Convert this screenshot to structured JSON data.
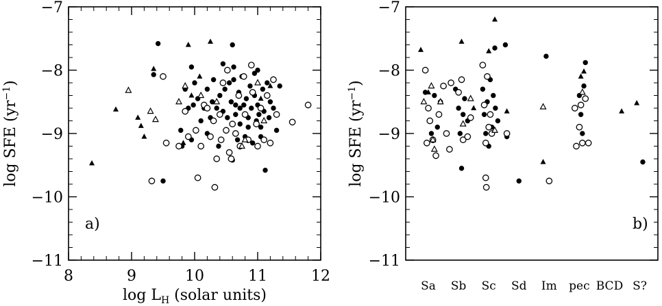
{
  "chart_data": [
    {
      "type": "scatter",
      "panel_label": "a)",
      "xlabel_main": "log L",
      "xlabel_sub": "H",
      "xlabel_rest": " (solar units)",
      "ylabel": "log SFE (yr",
      "ylabel_sup": "−1",
      "ylabel_close": ")",
      "xlim": [
        8,
        12
      ],
      "ylim": [
        -11,
        -7
      ],
      "xticks": [
        8,
        9,
        10,
        11,
        12
      ],
      "yticks": [
        -7,
        -8,
        -9,
        -10,
        -11
      ],
      "xtick_labels": [
        "8",
        "9",
        "10",
        "11",
        "12"
      ],
      "ytick_labels": [
        "−7",
        "−8",
        "−9",
        "−10",
        "−11"
      ],
      "series": [
        {
          "marker": "filled-circle",
          "points": [
            [
              9.42,
              -7.58
            ],
            [
              9.35,
              -8.07
            ],
            [
              9.5,
              -9.75
            ],
            [
              9.98,
              -8.55
            ],
            [
              9.85,
              -8.3
            ],
            [
              9.78,
              -8.95
            ],
            [
              9.95,
              -9.1
            ],
            [
              9.8,
              -9.2
            ],
            [
              10.05,
              -8.45
            ],
            [
              10.15,
              -8.6
            ],
            [
              10.2,
              -8.3
            ],
            [
              10.25,
              -8.75
            ],
            [
              10.3,
              -8.15
            ],
            [
              10.35,
              -8.6
            ],
            [
              10.4,
              -8.4
            ],
            [
              10.45,
              -7.9
            ],
            [
              10.45,
              -8.65
            ],
            [
              10.5,
              -8.95
            ],
            [
              10.55,
              -8.2
            ],
            [
              10.58,
              -8.5
            ],
            [
              10.6,
              -9.42
            ],
            [
              10.62,
              -7.95
            ],
            [
              10.65,
              -8.7
            ],
            [
              10.7,
              -8.35
            ],
            [
              10.72,
              -8.85
            ],
            [
              10.75,
              -8.1
            ],
            [
              10.78,
              -8.55
            ],
            [
              10.8,
              -9.05
            ],
            [
              10.82,
              -8.45
            ],
            [
              10.85,
              -8.75
            ],
            [
              10.88,
              -8.25
            ],
            [
              10.9,
              -8.6
            ],
            [
              10.92,
              -9.15
            ],
            [
              10.95,
              -8.4
            ],
            [
              10.98,
              -8.8
            ],
            [
              11.0,
              -8.55
            ],
            [
              11.02,
              -8.7
            ],
            [
              11.05,
              -8.9
            ],
            [
              11.08,
              -8.3
            ],
            [
              11.1,
              -8.65
            ],
            [
              11.12,
              -9.58
            ],
            [
              11.15,
              -8.2
            ],
            [
              11.18,
              -8.75
            ],
            [
              11.2,
              -8.5
            ],
            [
              11.25,
              -8.6
            ],
            [
              11.3,
              -8.95
            ],
            [
              11.35,
              -8.25
            ],
            [
              10.0,
              -8.2
            ],
            [
              10.1,
              -8.8
            ],
            [
              10.2,
              -9.0
            ],
            [
              10.28,
              -8.5
            ],
            [
              10.38,
              -9.2
            ],
            [
              10.48,
              -8.3
            ],
            [
              10.52,
              -8.75
            ],
            [
              10.62,
              -8.15
            ],
            [
              10.68,
              -9.1
            ],
            [
              10.72,
              -8.6
            ],
            [
              10.85,
              -8.9
            ],
            [
              10.95,
              -8.05
            ],
            [
              11.05,
              -9.05
            ],
            [
              9.9,
              -8.6
            ],
            [
              9.95,
              -7.95
            ],
            [
              10.6,
              -7.6
            ],
            [
              10.65,
              -8.55
            ],
            [
              11.0,
              -8.0
            ]
          ]
        },
        {
          "marker": "open-circle",
          "points": [
            [
              9.5,
              -8.1
            ],
            [
              9.55,
              -9.15
            ],
            [
              9.32,
              -9.75
            ],
            [
              9.75,
              -9.2
            ],
            [
              9.85,
              -8.65
            ],
            [
              9.9,
              -9.05
            ],
            [
              10.02,
              -8.95
            ],
            [
              10.05,
              -9.7
            ],
            [
              10.1,
              -9.2
            ],
            [
              10.15,
              -8.55
            ],
            [
              10.25,
              -9.05
            ],
            [
              10.3,
              -8.8
            ],
            [
              10.32,
              -9.85
            ],
            [
              10.35,
              -9.4
            ],
            [
              10.4,
              -8.7
            ],
            [
              10.42,
              -9.1
            ],
            [
              10.5,
              -8.95
            ],
            [
              10.52,
              -8.0
            ],
            [
              10.55,
              -9.3
            ],
            [
              10.6,
              -8.85
            ],
            [
              10.65,
              -9.0
            ],
            [
              10.7,
              -8.4
            ],
            [
              10.72,
              -9.2
            ],
            [
              10.78,
              -8.1
            ],
            [
              10.8,
              -8.7
            ],
            [
              10.85,
              -9.1
            ],
            [
              10.9,
              -7.92
            ],
            [
              10.92,
              -8.35
            ],
            [
              10.98,
              -8.85
            ],
            [
              11.0,
              -9.2
            ],
            [
              11.05,
              -8.6
            ],
            [
              11.1,
              -9.1
            ],
            [
              11.15,
              -8.4
            ],
            [
              11.2,
              -9.15
            ],
            [
              11.25,
              -8.15
            ],
            [
              11.3,
              -8.7
            ],
            [
              11.55,
              -8.82
            ],
            [
              11.8,
              -8.55
            ],
            [
              10.2,
              -8.6
            ],
            [
              10.45,
              -8.2
            ],
            [
              10.58,
              -9.4
            ]
          ]
        },
        {
          "marker": "filled-triangle",
          "points": [
            [
              8.37,
              -9.47
            ],
            [
              8.75,
              -8.62
            ],
            [
              9.1,
              -8.75
            ],
            [
              9.15,
              -8.88
            ],
            [
              9.2,
              -9.05
            ],
            [
              9.35,
              -7.98
            ],
            [
              9.9,
              -7.6
            ],
            [
              10.25,
              -7.55
            ],
            [
              9.95,
              -8.4
            ],
            [
              10.08,
              -8.1
            ],
            [
              11.05,
              -8.45
            ],
            [
              11.2,
              -8.25
            ],
            [
              9.82,
              -9.15
            ]
          ]
        },
        {
          "marker": "open-triangle",
          "points": [
            [
              8.95,
              -8.32
            ],
            [
              9.3,
              -8.65
            ],
            [
              9.38,
              -8.78
            ],
            [
              9.75,
              -8.5
            ],
            [
              9.85,
              -8.25
            ],
            [
              10.1,
              -8.4
            ],
            [
              10.35,
              -8.5
            ],
            [
              10.8,
              -9.1
            ],
            [
              10.75,
              -9.2
            ],
            [
              11.1,
              -8.8
            ],
            [
              11.0,
              -8.2
            ]
          ]
        }
      ]
    },
    {
      "type": "scatter",
      "panel_label": "b)",
      "ylabel": "log SFE (yr",
      "ylabel_sup": "−1",
      "ylabel_close": ")",
      "ylim": [
        -11,
        -7
      ],
      "yticks": [
        -7,
        -8,
        -9,
        -10,
        -11
      ],
      "ytick_labels": [
        "−7",
        "−8",
        "−9",
        "−10",
        "−11"
      ],
      "categories": [
        "Sa",
        "Sb",
        "Sc",
        "Sd",
        "Im",
        "pec",
        "BCD",
        "S?"
      ],
      "category_positions": [
        1,
        2,
        3,
        4,
        5,
        6,
        7,
        8
      ],
      "xlim": [
        0.25,
        8.6
      ],
      "series": [
        {
          "marker": "filled-circle",
          "points": [
            [
              0.9,
              -8.35
            ],
            [
              1.0,
              -8.6
            ],
            [
              1.1,
              -9.0
            ],
            [
              1.2,
              -8.4
            ],
            [
              1.3,
              -8.9
            ],
            [
              1.4,
              -8.5
            ],
            [
              1.9,
              -8.3
            ],
            [
              2.0,
              -8.6
            ],
            [
              2.05,
              -9.0
            ],
            [
              2.1,
              -9.55
            ],
            [
              2.15,
              -8.7
            ],
            [
              2.2,
              -8.45
            ],
            [
              2.3,
              -8.8
            ],
            [
              2.8,
              -8.3
            ],
            [
              2.85,
              -8.7
            ],
            [
              2.9,
              -9.0
            ],
            [
              2.95,
              -8.5
            ],
            [
              3.0,
              -9.2
            ],
            [
              3.05,
              -8.15
            ],
            [
              3.1,
              -8.9
            ],
            [
              3.15,
              -8.4
            ],
            [
              3.2,
              -7.65
            ],
            [
              3.22,
              -8.6
            ],
            [
              3.3,
              -8.8
            ],
            [
              3.55,
              -7.6
            ],
            [
              3.6,
              -9.05
            ],
            [
              4.0,
              -9.75
            ],
            [
              4.9,
              -7.78
            ],
            [
              6.0,
              -8.4
            ],
            [
              6.05,
              -8.7
            ],
            [
              6.1,
              -9.0
            ],
            [
              6.15,
              -8.25
            ],
            [
              6.2,
              -7.88
            ],
            [
              8.1,
              -9.45
            ]
          ]
        },
        {
          "marker": "open-circle",
          "points": [
            [
              0.9,
              -8.0
            ],
            [
              0.95,
              -9.15
            ],
            [
              1.0,
              -8.6
            ],
            [
              1.05,
              -8.8
            ],
            [
              1.15,
              -9.1
            ],
            [
              1.25,
              -9.35
            ],
            [
              1.35,
              -8.7
            ],
            [
              1.5,
              -8.25
            ],
            [
              1.6,
              -9.0
            ],
            [
              1.7,
              -9.25
            ],
            [
              1.75,
              -8.2
            ],
            [
              2.0,
              -8.35
            ],
            [
              2.1,
              -8.15
            ],
            [
              2.15,
              -9.1
            ],
            [
              2.3,
              -9.05
            ],
            [
              2.4,
              -8.75
            ],
            [
              2.8,
              -7.92
            ],
            [
              2.85,
              -8.55
            ],
            [
              2.9,
              -9.15
            ],
            [
              2.9,
              -9.7
            ],
            [
              2.92,
              -9.85
            ],
            [
              2.95,
              -8.1
            ],
            [
              3.0,
              -8.9
            ],
            [
              3.05,
              -8.7
            ],
            [
              3.1,
              -9.0
            ],
            [
              3.6,
              -9.0
            ],
            [
              5.0,
              -9.75
            ],
            [
              5.85,
              -8.6
            ],
            [
              5.9,
              -9.2
            ],
            [
              6.0,
              -8.9
            ],
            [
              6.05,
              -8.55
            ],
            [
              6.1,
              -9.15
            ],
            [
              6.2,
              -8.45
            ],
            [
              6.3,
              -9.15
            ]
          ]
        },
        {
          "marker": "filled-triangle",
          "points": [
            [
              0.75,
              -7.68
            ],
            [
              1.0,
              -8.35
            ],
            [
              2.1,
              -7.55
            ],
            [
              2.5,
              -8.6
            ],
            [
              3.0,
              -7.7
            ],
            [
              3.2,
              -7.2
            ],
            [
              3.6,
              -8.65
            ],
            [
              4.8,
              -9.45
            ],
            [
              6.05,
              -8.1
            ],
            [
              6.15,
              -8.02
            ],
            [
              7.4,
              -8.65
            ],
            [
              7.9,
              -8.52
            ]
          ]
        },
        {
          "marker": "open-triangle",
          "points": [
            [
              0.85,
              -8.5
            ],
            [
              1.1,
              -8.25
            ],
            [
              1.15,
              -9.1
            ],
            [
              1.2,
              -9.25
            ],
            [
              1.4,
              -8.5
            ],
            [
              2.15,
              -8.85
            ],
            [
              2.4,
              -8.45
            ],
            [
              3.2,
              -8.95
            ],
            [
              4.8,
              -8.58
            ],
            [
              6.1,
              -8.35
            ]
          ]
        }
      ]
    }
  ]
}
